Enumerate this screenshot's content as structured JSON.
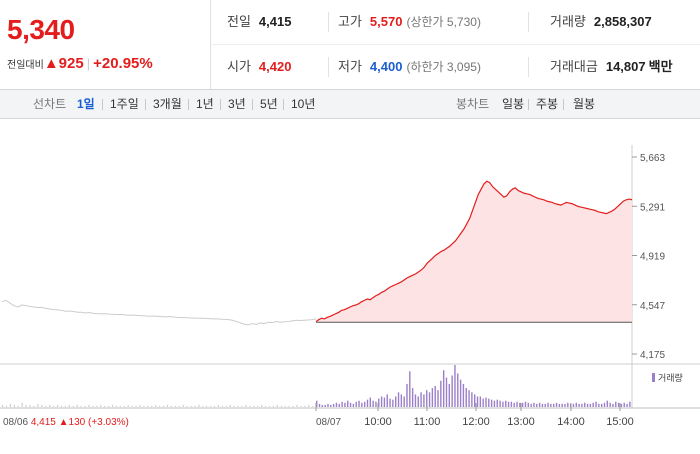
{
  "quote": {
    "price": "5,340",
    "change_label": "전일대비",
    "change_arrow": "▲",
    "change_value": "925",
    "change_rate": "+20.95%"
  },
  "stats": {
    "prev_close": {
      "label": "전일",
      "value": "4,415"
    },
    "high": {
      "label": "고가",
      "value": "5,570",
      "sub": "(상한가 5,730)"
    },
    "volume": {
      "label": "거래량",
      "value": "2,858,307"
    },
    "open": {
      "label": "시가",
      "value": "4,420"
    },
    "low": {
      "label": "저가",
      "value": "4,400",
      "sub": "(하한가 3,095)"
    },
    "amount": {
      "label": "거래대금",
      "value": "14,807",
      "unit": "백만"
    }
  },
  "toolbar": {
    "line_label": "선차트",
    "line_tabs": [
      "1일",
      "1주일",
      "3개월",
      "1년",
      "3년",
      "5년",
      "10년"
    ],
    "candle_label": "봉차트",
    "candle_tabs": [
      "일봉",
      "주봉",
      "월봉"
    ],
    "active_tab": "1일"
  },
  "colors": {
    "up": "#e31d1d",
    "down": "#1a5fd1",
    "prev_line": "#cccccc",
    "volume": "#9b7fc9",
    "fill": "#fde3e3"
  },
  "chart_data": {
    "type": "line",
    "y_ticks": [
      "5,663",
      "5,291",
      "4,919",
      "4,547",
      "4,175"
    ],
    "y_tick_values": [
      5663,
      5291,
      4919,
      4547,
      4175
    ],
    "ylim": [
      4175,
      5663
    ],
    "x_ticks": [
      "10:00",
      "11:00",
      "12:00",
      "13:00",
      "14:00",
      "15:00"
    ],
    "prev_day_label": "08/06",
    "prev_day_close": "4,415",
    "prev_day_arrow": "▲",
    "prev_day_change": "130",
    "prev_day_rate": "(+3.03%)",
    "current_day_label": "08/07",
    "volume_legend": "거래량",
    "baseline": 4415,
    "prev_day": [
      4570,
      4580,
      4560,
      4540,
      4530,
      4545,
      4540,
      4535,
      4530,
      4525,
      4528,
      4520,
      4515,
      4510,
      4508,
      4505,
      4498,
      4500,
      4496,
      4490,
      4490,
      4485,
      4488,
      4482,
      4480,
      4478,
      4480,
      4476,
      4475,
      4472,
      4474,
      4470,
      4468,
      4470,
      4466,
      4465,
      4463,
      4460,
      4462,
      4460,
      4458,
      4455,
      4457,
      4455,
      4452,
      4450,
      4450,
      4448,
      4447,
      4446,
      4445,
      4444,
      4442,
      4440,
      4440,
      4438,
      4436,
      4435,
      4430,
      4420,
      4410,
      4400,
      4395,
      4405,
      4398,
      4410,
      4405,
      4415,
      4412,
      4420,
      4415,
      4418,
      4420,
      4425,
      4430,
      4428,
      4430,
      4432,
      4435,
      4440
    ],
    "today": [
      4420,
      4435,
      4445,
      4440,
      4452,
      4460,
      4470,
      4480,
      4490,
      4505,
      4510,
      4520,
      4530,
      4540,
      4545,
      4555,
      4570,
      4580,
      4590,
      4585,
      4600,
      4615,
      4625,
      4640,
      4650,
      4665,
      4680,
      4690,
      4700,
      4710,
      4720,
      4735,
      4750,
      4760,
      4770,
      4780,
      4795,
      4810,
      4830,
      4860,
      4880,
      4900,
      4920,
      4935,
      4950,
      4960,
      4975,
      4990,
      5010,
      5030,
      5060,
      5090,
      5120,
      5160,
      5200,
      5260,
      5320,
      5380,
      5420,
      5460,
      5480,
      5470,
      5440,
      5420,
      5400,
      5380,
      5360,
      5370,
      5400,
      5420,
      5430,
      5410,
      5400,
      5390,
      5385,
      5380,
      5370,
      5360,
      5350,
      5345,
      5340,
      5330,
      5325,
      5320,
      5310,
      5305,
      5300,
      5310,
      5320,
      5315,
      5310,
      5300,
      5290,
      5285,
      5280,
      5275,
      5270,
      5265,
      5260,
      5250,
      5245,
      5240,
      5235,
      5245,
      5255,
      5270,
      5290,
      5310,
      5330,
      5340,
      5345,
      5340
    ],
    "volume_prev": [
      2,
      1,
      3,
      2,
      1,
      4,
      2,
      2,
      1,
      3,
      2,
      1,
      2,
      1,
      2,
      1,
      1,
      2,
      1,
      2,
      1,
      1,
      2,
      1,
      1,
      2,
      1,
      1,
      2,
      1,
      1,
      1,
      2,
      1,
      1,
      2,
      1,
      1,
      1,
      2,
      1,
      1,
      2,
      1,
      1,
      1,
      2,
      1,
      1,
      1,
      2,
      1,
      1,
      1,
      1,
      2,
      1,
      1,
      2,
      1,
      1,
      1,
      2,
      1,
      1,
      1,
      2,
      1,
      1,
      1,
      2,
      1,
      1,
      1,
      1,
      2,
      1,
      1,
      2,
      1
    ],
    "volume_today": [
      6,
      3,
      2,
      2,
      3,
      2,
      3,
      4,
      3,
      5,
      4,
      6,
      4,
      3,
      5,
      6,
      4,
      5,
      7,
      9,
      6,
      5,
      8,
      10,
      9,
      12,
      8,
      7,
      10,
      14,
      12,
      10,
      22,
      34,
      18,
      12,
      10,
      14,
      12,
      16,
      14,
      18,
      20,
      16,
      25,
      35,
      28,
      22,
      30,
      40,
      32,
      26,
      22,
      18,
      16,
      14,
      12,
      10,
      10,
      8,
      9,
      8,
      7,
      6,
      7,
      6,
      5,
      6,
      5,
      5,
      4,
      5,
      4,
      4,
      5,
      4,
      3,
      4,
      3,
      4,
      3,
      3,
      4,
      3,
      3,
      4,
      3,
      3,
      3,
      4,
      3,
      3,
      4,
      3,
      3,
      4,
      3,
      3,
      4,
      5,
      3,
      3,
      4,
      6,
      4,
      3,
      5,
      4,
      3,
      4,
      3,
      5
    ]
  }
}
